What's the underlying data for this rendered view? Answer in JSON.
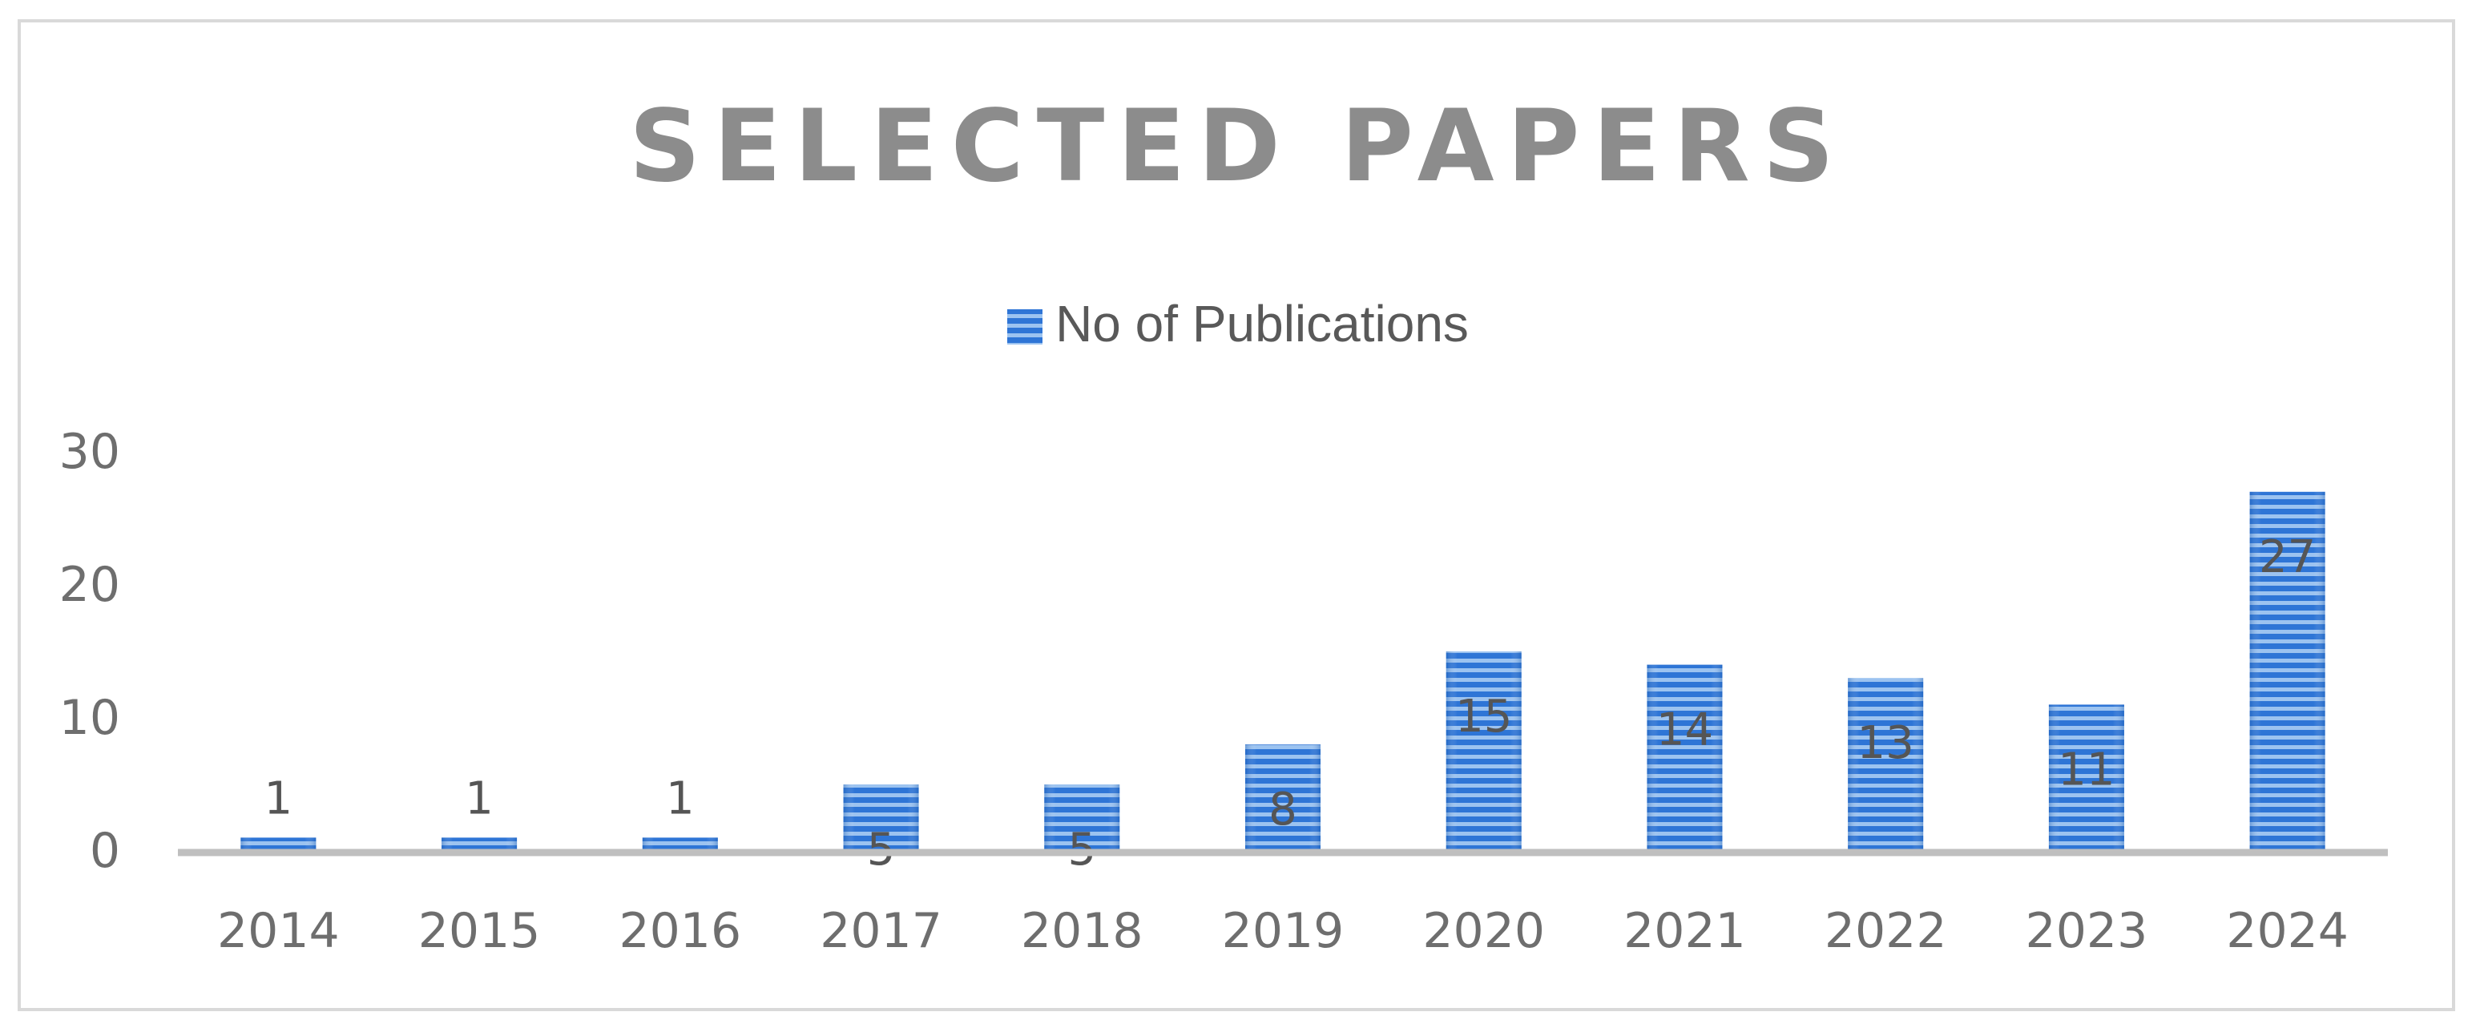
{
  "chart_data": {
    "type": "bar",
    "title": "SELECTED PAPERS",
    "legend": {
      "position": "top-center"
    },
    "categories": [
      "2014",
      "2015",
      "2016",
      "2017",
      "2018",
      "2019",
      "2020",
      "2021",
      "2022",
      "2023",
      "2024"
    ],
    "series": [
      {
        "name": "No of Publications",
        "values": [
          1,
          1,
          1,
          5,
          5,
          8,
          15,
          14,
          13,
          11,
          27
        ],
        "color": "#2e75d6"
      }
    ],
    "data_labels": [
      "1",
      "1",
      "1",
      "5",
      "5",
      "8",
      "15",
      "14",
      "13",
      "11",
      "27"
    ],
    "ylim": [
      0,
      30
    ],
    "yticks": [
      "0",
      "10",
      "20",
      "30"
    ],
    "grid": false,
    "xlabel": "",
    "ylabel": ""
  },
  "colors": {
    "bar": "#2e75d6",
    "bar_light": "#9cc3f0",
    "axis": "#bfbfbf",
    "text": "#6e6e6e"
  }
}
